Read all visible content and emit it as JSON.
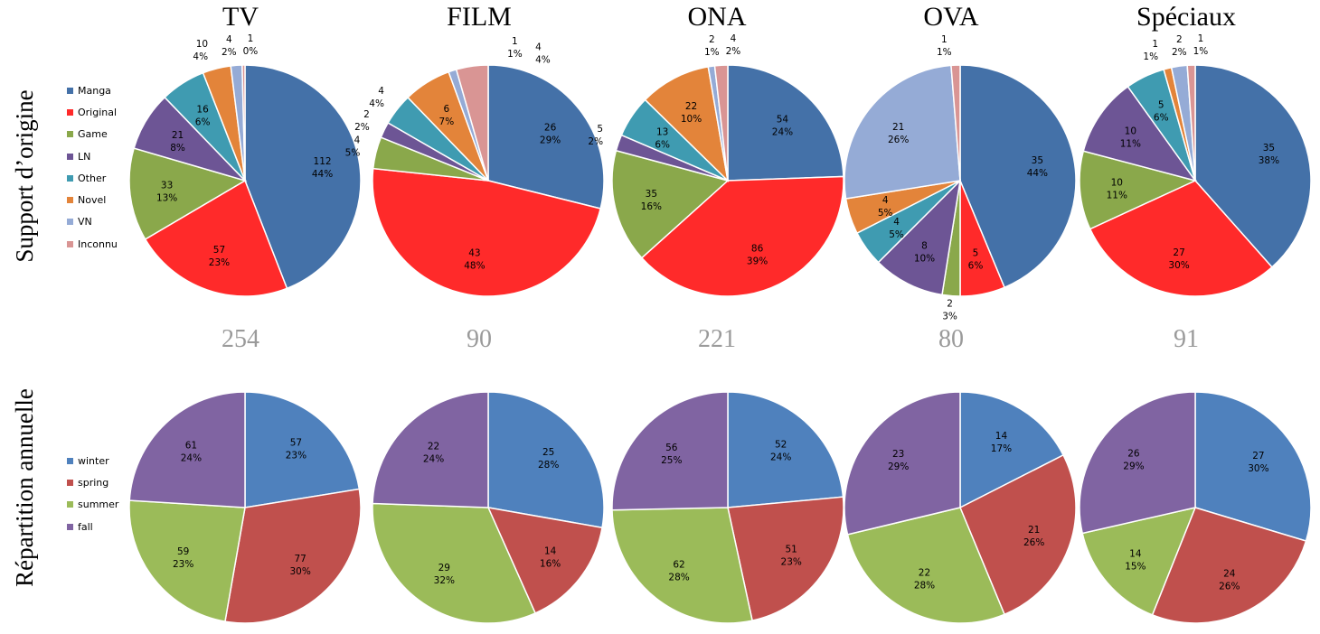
{
  "columns": [
    "TV",
    "FILM",
    "ONA",
    "OVA",
    "Spéciaux"
  ],
  "row_labels": [
    "Support d’origine",
    "Répartition annuelle"
  ],
  "totals": [
    "254",
    "90",
    "221",
    "80",
    "91"
  ],
  "chart_data": [
    {
      "type": "pie",
      "title": "TV",
      "group": "Support d’origine",
      "categories": [
        "Manga",
        "Original",
        "Game",
        "LN",
        "Other",
        "Novel",
        "VN",
        "Inconnu"
      ],
      "values": [
        112,
        57,
        33,
        21,
        16,
        10,
        4,
        1
      ],
      "percents": [
        "44%",
        "23%",
        "13%",
        "8%",
        "6%",
        "4%",
        "2%",
        "0%"
      ]
    },
    {
      "type": "pie",
      "title": "FILM",
      "group": "Support d’origine",
      "categories": [
        "Manga",
        "Original",
        "Game",
        "LN",
        "Other",
        "Novel",
        "VN",
        "Inconnu"
      ],
      "values": [
        26,
        43,
        4,
        2,
        4,
        6,
        1,
        4
      ],
      "percents": [
        "29%",
        "48%",
        "5%",
        "2%",
        "4%",
        "7%",
        "1%",
        "4%"
      ]
    },
    {
      "type": "pie",
      "title": "ONA",
      "group": "Support d’origine",
      "categories": [
        "Manga",
        "Original",
        "Game",
        "LN",
        "Other",
        "Novel",
        "VN",
        "Inconnu"
      ],
      "values": [
        54,
        86,
        35,
        5,
        13,
        22,
        2,
        4
      ],
      "percents": [
        "24%",
        "39%",
        "16%",
        "2%",
        "6%",
        "10%",
        "1%",
        "2%"
      ]
    },
    {
      "type": "pie",
      "title": "OVA",
      "group": "Support d’origine",
      "categories": [
        "Manga",
        "Original",
        "Game",
        "LN",
        "Other",
        "Novel",
        "VN",
        "Inconnu"
      ],
      "values": [
        35,
        5,
        2,
        8,
        4,
        4,
        21,
        1
      ],
      "percents": [
        "44%",
        "6%",
        "3%",
        "10%",
        "5%",
        "5%",
        "26%",
        "1%"
      ]
    },
    {
      "type": "pie",
      "title": "Spéciaux",
      "group": "Support d’origine",
      "categories": [
        "Manga",
        "Original",
        "Game",
        "LN",
        "Other",
        "Novel",
        "VN",
        "Inconnu"
      ],
      "values": [
        35,
        27,
        10,
        10,
        5,
        1,
        2,
        1
      ],
      "percents": [
        "38%",
        "30%",
        "11%",
        "11%",
        "6%",
        "1%",
        "2%",
        "1%"
      ]
    },
    {
      "type": "pie",
      "title": "TV",
      "group": "Répartition annuelle",
      "categories": [
        "winter",
        "spring",
        "summer",
        "fall"
      ],
      "values": [
        57,
        77,
        59,
        61
      ],
      "percents": [
        "23%",
        "30%",
        "23%",
        "24%"
      ]
    },
    {
      "type": "pie",
      "title": "FILM",
      "group": "Répartition annuelle",
      "categories": [
        "winter",
        "spring",
        "summer",
        "fall"
      ],
      "values": [
        25,
        14,
        29,
        22
      ],
      "percents": [
        "28%",
        "16%",
        "32%",
        "24%"
      ]
    },
    {
      "type": "pie",
      "title": "ONA",
      "group": "Répartition annuelle",
      "categories": [
        "winter",
        "spring",
        "summer",
        "fall"
      ],
      "values": [
        52,
        51,
        62,
        56
      ],
      "percents": [
        "24%",
        "23%",
        "28%",
        "25%"
      ]
    },
    {
      "type": "pie",
      "title": "OVA",
      "group": "Répartition annuelle",
      "categories": [
        "winter",
        "spring",
        "summer",
        "fall"
      ],
      "values": [
        14,
        21,
        22,
        23
      ],
      "percents": [
        "17%",
        "26%",
        "28%",
        "29%"
      ]
    },
    {
      "type": "pie",
      "title": "Spéciaux",
      "group": "Répartition annuelle",
      "categories": [
        "winter",
        "spring",
        "summer",
        "fall"
      ],
      "values": [
        27,
        24,
        14,
        26
      ],
      "percents": [
        "30%",
        "26%",
        "15%",
        "29%"
      ]
    }
  ],
  "legends": {
    "source": [
      {
        "label": "Manga",
        "color": "#4471a8"
      },
      {
        "label": "Original",
        "color": "#ff2a2a"
      },
      {
        "label": "Game",
        "color": "#8aa84b"
      },
      {
        "label": "LN",
        "color": "#6d5595"
      },
      {
        "label": "Other",
        "color": "#3f9bb1"
      },
      {
        "label": "Novel",
        "color": "#e3843a"
      },
      {
        "label": "VN",
        "color": "#95abd6"
      },
      {
        "label": "Inconnu",
        "color": "#d99594"
      }
    ],
    "season": [
      {
        "label": "winter",
        "color": "#4f81bd"
      },
      {
        "label": "spring",
        "color": "#c0504d"
      },
      {
        "label": "summer",
        "color": "#9bbb59"
      },
      {
        "label": "fall",
        "color": "#8064a2"
      }
    ]
  }
}
